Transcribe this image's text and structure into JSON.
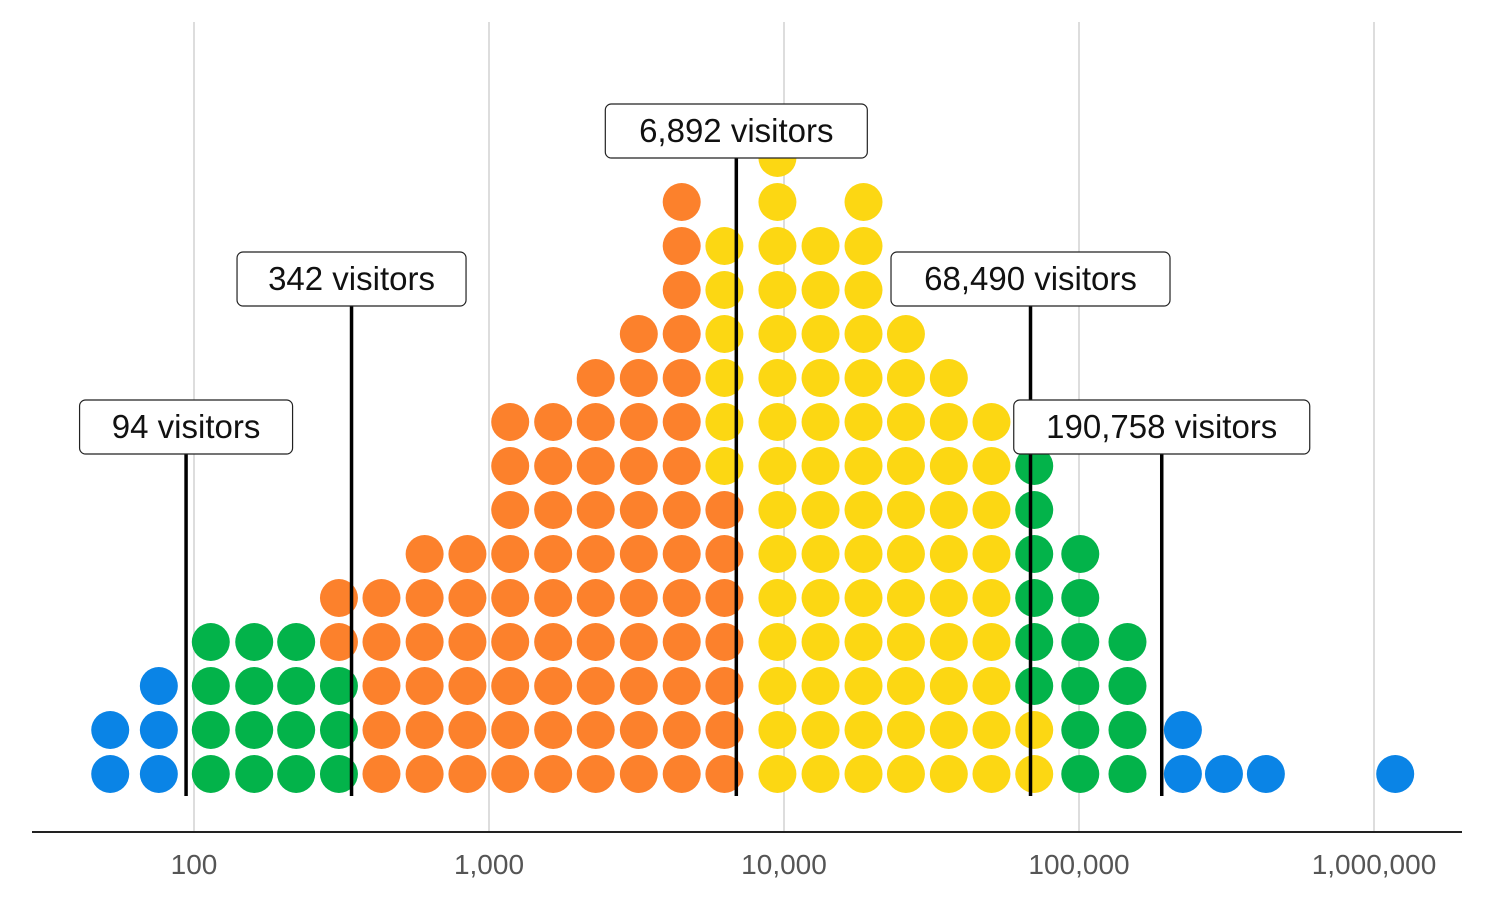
{
  "chart_data": {
    "type": "scatter",
    "subtype": "dot-histogram (beeswarm), log x-axis",
    "x_scale": "log",
    "xlim": [
      40,
      2000000
    ],
    "grid": "vertical lines at major ticks",
    "x_ticks": [
      {
        "value": 100,
        "label": "100"
      },
      {
        "value": 1000,
        "label": "1,000"
      },
      {
        "value": 10000,
        "label": "10,000"
      },
      {
        "value": 100000,
        "label": "100,000"
      },
      {
        "value": 1000000,
        "label": "1,000,000"
      }
    ],
    "colors": {
      "blue": "#0a84e6",
      "green": "#03b34a",
      "orange": "#fc812c",
      "yellow": "#fcd713"
    },
    "columns": [
      {
        "x": 52,
        "groups": [
          [
            "blue",
            2
          ]
        ]
      },
      {
        "x": 76,
        "groups": [
          [
            "blue",
            3
          ]
        ]
      },
      {
        "x": 114,
        "groups": [
          [
            "green",
            4
          ]
        ]
      },
      {
        "x": 160,
        "groups": [
          [
            "green",
            4
          ]
        ]
      },
      {
        "x": 222,
        "groups": [
          [
            "green",
            4
          ]
        ]
      },
      {
        "x": 310,
        "groups": [
          [
            "green",
            3
          ],
          [
            "orange",
            2
          ]
        ]
      },
      {
        "x": 432,
        "groups": [
          [
            "orange",
            5
          ]
        ]
      },
      {
        "x": 605,
        "groups": [
          [
            "orange",
            6
          ]
        ]
      },
      {
        "x": 845,
        "groups": [
          [
            "orange",
            6
          ]
        ]
      },
      {
        "x": 1180,
        "groups": [
          [
            "orange",
            9
          ]
        ]
      },
      {
        "x": 1650,
        "groups": [
          [
            "orange",
            9
          ]
        ]
      },
      {
        "x": 2300,
        "groups": [
          [
            "orange",
            10
          ]
        ]
      },
      {
        "x": 3220,
        "groups": [
          [
            "orange",
            11
          ]
        ]
      },
      {
        "x": 4500,
        "groups": [
          [
            "orange",
            14
          ]
        ]
      },
      {
        "x": 6280,
        "groups": [
          [
            "orange",
            7
          ],
          [
            "yellow",
            6
          ]
        ]
      },
      {
        "x": 9500,
        "groups": [
          [
            "yellow",
            15
          ]
        ]
      },
      {
        "x": 13300,
        "groups": [
          [
            "yellow",
            13
          ]
        ]
      },
      {
        "x": 18600,
        "groups": [
          [
            "yellow",
            14
          ]
        ]
      },
      {
        "x": 25900,
        "groups": [
          [
            "yellow",
            11
          ]
        ]
      },
      {
        "x": 36200,
        "groups": [
          [
            "yellow",
            10
          ]
        ]
      },
      {
        "x": 50500,
        "groups": [
          [
            "yellow",
            9
          ]
        ]
      },
      {
        "x": 70500,
        "groups": [
          [
            "yellow",
            2
          ],
          [
            "green",
            6
          ]
        ]
      },
      {
        "x": 101000,
        "groups": [
          [
            "green",
            6
          ]
        ]
      },
      {
        "x": 146000,
        "groups": [
          [
            "green",
            4
          ]
        ]
      },
      {
        "x": 225000,
        "groups": [
          [
            "blue",
            2
          ]
        ]
      },
      {
        "x": 310000,
        "groups": [
          [
            "blue",
            1
          ]
        ]
      },
      {
        "x": 430000,
        "groups": [
          [
            "blue",
            1
          ]
        ]
      },
      {
        "x": 1180000,
        "groups": [
          [
            "blue",
            1
          ]
        ]
      }
    ],
    "annotations": [
      {
        "x": 94,
        "label": "94 visitors",
        "level": 1
      },
      {
        "x": 342,
        "label": "342 visitors",
        "level": 2
      },
      {
        "x": 6892,
        "label": "6,892 visitors",
        "level": 3
      },
      {
        "x": 68490,
        "label": "68,490 visitors",
        "level": 2
      },
      {
        "x": 190758,
        "label": "190,758 visitors",
        "level": 1
      }
    ]
  }
}
